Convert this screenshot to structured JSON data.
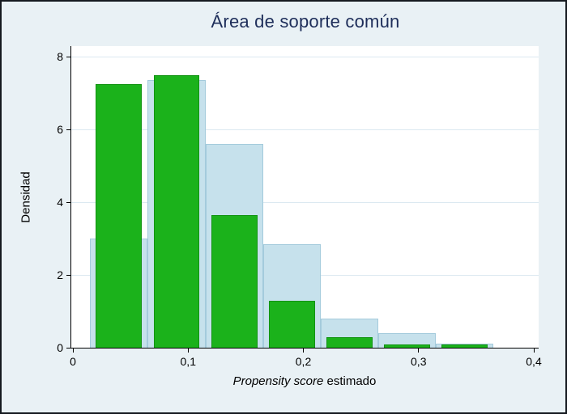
{
  "chart_data": {
    "type": "bar",
    "title": "Área de soporte común",
    "ylabel": "Densidad",
    "xlabel_parts": {
      "italic": "Propensity score",
      "normal": " estimado"
    },
    "xlim": [
      0,
      0.4
    ],
    "ylim": [
      0,
      8
    ],
    "grid": true,
    "legend": "none",
    "y_ticks": [
      0,
      2,
      4,
      6,
      8
    ],
    "y_tick_labels": [
      "0",
      "2",
      "4",
      "6",
      "8"
    ],
    "x_ticks": [
      0,
      0.1,
      0.2,
      0.3,
      0.4
    ],
    "x_tick_labels": [
      "0",
      "0,1",
      "0,2",
      "0,3",
      "0,4"
    ],
    "bin_centers": [
      0.04,
      0.09,
      0.14,
      0.19,
      0.24,
      0.29,
      0.34
    ],
    "series": [
      {
        "name": "lightblue",
        "color": "#c6e1ec",
        "border_color": "#a4cbdc",
        "bar_width": 0.05,
        "values": [
          3.0,
          7.35,
          5.6,
          2.85,
          0.8,
          0.4,
          0.12
        ]
      },
      {
        "name": "green",
        "color": "#1bb21b",
        "border_color": "#129312",
        "bar_width": 0.04,
        "values": [
          7.25,
          7.5,
          3.65,
          1.3,
          0.3,
          0.1,
          0.1
        ]
      }
    ],
    "colors": {
      "background": "#e9f1f5",
      "plot_background": "#ffffff",
      "gridline": "#dce9f1",
      "axis": "#000000",
      "title": "#1e2e5a",
      "text": "#000000"
    }
  }
}
